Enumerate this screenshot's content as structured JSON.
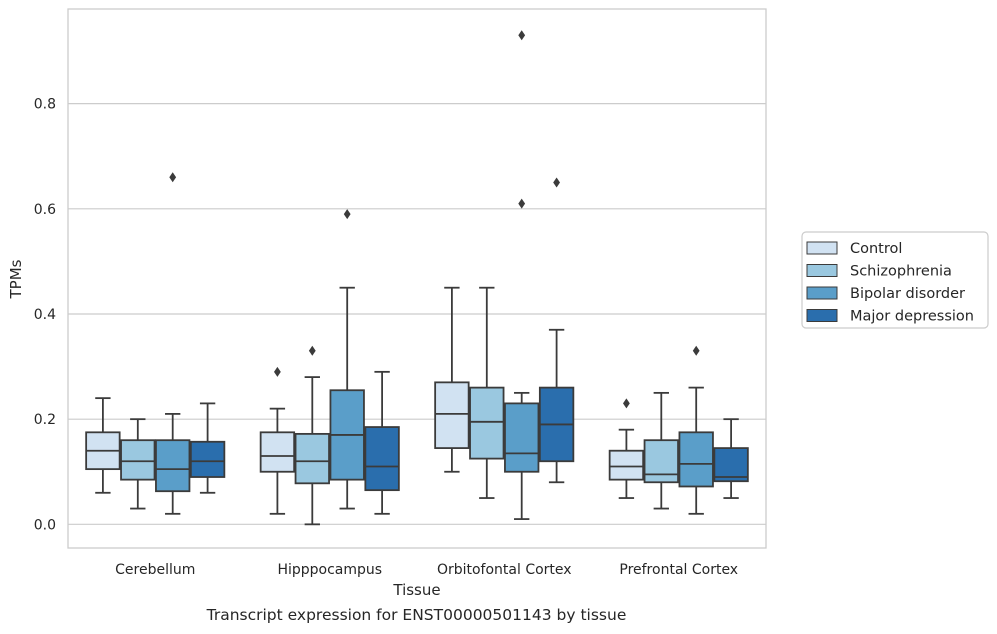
{
  "caption": "Transcript expression for ENST00000501143 by tissue",
  "chart_data": {
    "type": "boxplot",
    "xlabel": "Tissue",
    "ylabel": "TPMs",
    "ylim": [
      -0.045,
      0.98
    ],
    "yticks": [
      0.0,
      0.2,
      0.4,
      0.6,
      0.8
    ],
    "grid": "horizontal",
    "legend_position": "right",
    "categories": [
      "Cerebellum",
      "Hipppocampus",
      "Orbitofontal Cortex",
      "Prefrontal Cortex"
    ],
    "series": [
      {
        "name": "Control",
        "color": "#d1e2f2",
        "boxes": [
          {
            "whisker_low": 0.06,
            "q1": 0.105,
            "median": 0.14,
            "q3": 0.175,
            "whisker_high": 0.24,
            "outliers": []
          },
          {
            "whisker_low": 0.02,
            "q1": 0.1,
            "median": 0.13,
            "q3": 0.175,
            "whisker_high": 0.22,
            "outliers": [
              0.29
            ]
          },
          {
            "whisker_low": 0.1,
            "q1": 0.145,
            "median": 0.21,
            "q3": 0.27,
            "whisker_high": 0.45,
            "outliers": []
          },
          {
            "whisker_low": 0.05,
            "q1": 0.085,
            "median": 0.11,
            "q3": 0.14,
            "whisker_high": 0.18,
            "outliers": [
              0.23
            ]
          }
        ]
      },
      {
        "name": "Schizophrenia",
        "color": "#9ac8e0",
        "boxes": [
          {
            "whisker_low": 0.03,
            "q1": 0.085,
            "median": 0.12,
            "q3": 0.16,
            "whisker_high": 0.2,
            "outliers": []
          },
          {
            "whisker_low": 0.0,
            "q1": 0.078,
            "median": 0.12,
            "q3": 0.172,
            "whisker_high": 0.28,
            "outliers": [
              0.33
            ]
          },
          {
            "whisker_low": 0.05,
            "q1": 0.125,
            "median": 0.195,
            "q3": 0.26,
            "whisker_high": 0.45,
            "outliers": []
          },
          {
            "whisker_low": 0.03,
            "q1": 0.08,
            "median": 0.095,
            "q3": 0.16,
            "whisker_high": 0.25,
            "outliers": []
          }
        ]
      },
      {
        "name": "Bipolar disorder",
        "color": "#5a9ec9",
        "boxes": [
          {
            "whisker_low": 0.02,
            "q1": 0.063,
            "median": 0.105,
            "q3": 0.16,
            "whisker_high": 0.21,
            "outliers": [
              0.66
            ]
          },
          {
            "whisker_low": 0.03,
            "q1": 0.085,
            "median": 0.17,
            "q3": 0.255,
            "whisker_high": 0.45,
            "outliers": [
              0.59
            ]
          },
          {
            "whisker_low": 0.01,
            "q1": 0.1,
            "median": 0.135,
            "q3": 0.23,
            "whisker_high": 0.25,
            "outliers": [
              0.61,
              0.93
            ]
          },
          {
            "whisker_low": 0.02,
            "q1": 0.072,
            "median": 0.115,
            "q3": 0.175,
            "whisker_high": 0.26,
            "outliers": [
              0.33
            ]
          }
        ]
      },
      {
        "name": "Major depression",
        "color": "#2a6ead",
        "boxes": [
          {
            "whisker_low": 0.06,
            "q1": 0.09,
            "median": 0.12,
            "q3": 0.157,
            "whisker_high": 0.23,
            "outliers": []
          },
          {
            "whisker_low": 0.02,
            "q1": 0.065,
            "median": 0.11,
            "q3": 0.185,
            "whisker_high": 0.29,
            "outliers": []
          },
          {
            "whisker_low": 0.08,
            "q1": 0.12,
            "median": 0.19,
            "q3": 0.26,
            "whisker_high": 0.37,
            "outliers": [
              0.65
            ]
          },
          {
            "whisker_low": 0.05,
            "q1": 0.082,
            "median": 0.09,
            "q3": 0.145,
            "whisker_high": 0.2,
            "outliers": []
          }
        ]
      }
    ],
    "colors": {
      "grid": "#cccccc",
      "frame": "#cccccc",
      "edge": "#3b3b3b",
      "legend_frame": "#cccccc"
    }
  }
}
